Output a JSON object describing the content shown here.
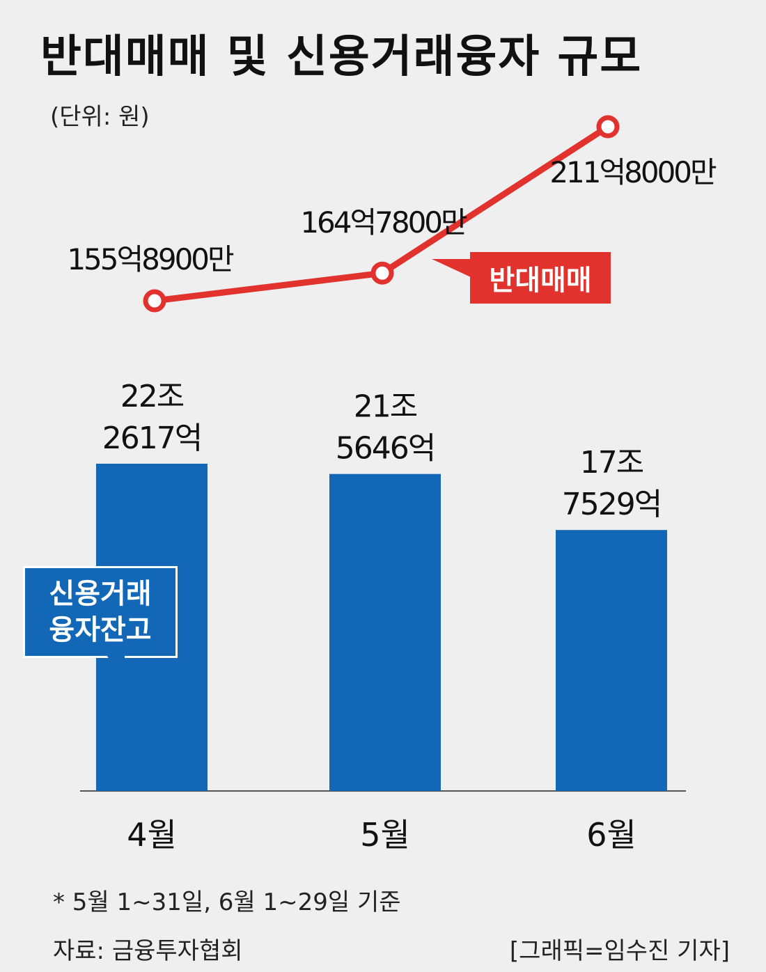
{
  "title": "반대매매 및 신용거래융자 규모",
  "unit_note": "(단위: 원)",
  "footnote": "*  5월 1~31일, 6월 1~29일 기준",
  "source": "자료: 금융투자협회",
  "credit": "[그래픽=임수진 기자]",
  "colors": {
    "bar": "#1268b7",
    "line": "#e2322e",
    "background": "#efefef"
  },
  "chart_data": {
    "type": "bar",
    "categories": [
      "4월",
      "5월",
      "6월"
    ],
    "series": [
      {
        "name": "신용거래융자잔고",
        "type": "bar",
        "values": [
          222617,
          215646,
          177529
        ],
        "value_unit": "억원",
        "labels": [
          [
            "22조",
            "2617억"
          ],
          [
            "21조",
            "5646억"
          ],
          [
            "17조",
            "7529억"
          ]
        ]
      },
      {
        "name": "반대매매",
        "type": "line",
        "values": [
          155.89,
          164.78,
          211.8
        ],
        "value_unit": "억원",
        "labels": [
          "155억8900만",
          "164억7800만",
          "211억8000만"
        ]
      }
    ],
    "bar_legend_label": [
      "신용거래",
      "융자잔고"
    ],
    "line_legend_label": "반대매매",
    "grid": false
  }
}
